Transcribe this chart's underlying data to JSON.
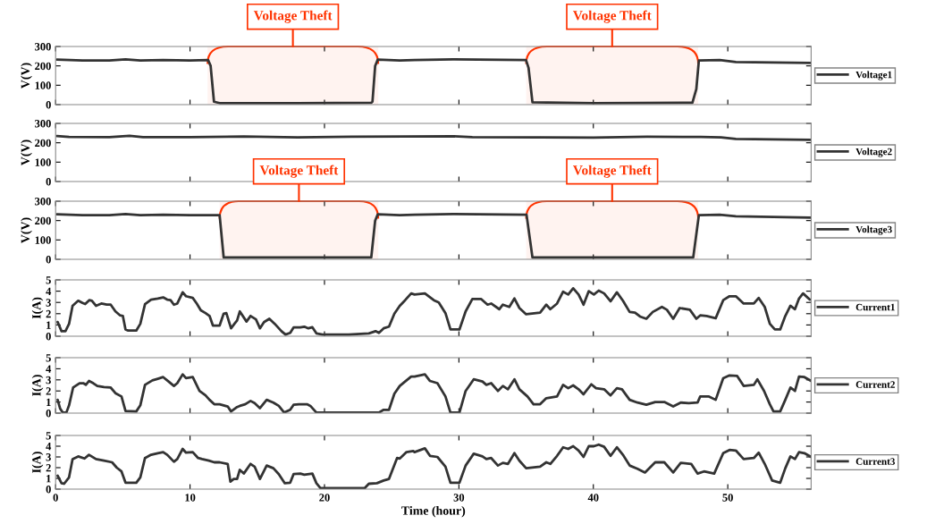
{
  "chart_data": [
    {
      "type": "line",
      "ylabel": "V(V)",
      "xlim": [
        0,
        56.2
      ],
      "xticks": [
        0,
        10,
        20,
        30,
        40,
        50
      ],
      "ylim": [
        0,
        300
      ],
      "yticks": [
        0,
        100,
        200,
        300
      ],
      "tick_labels": "y",
      "legend": "right",
      "grid": false,
      "x": [
        0.1,
        2,
        4,
        5.2,
        6.3,
        8,
        10,
        11.34,
        11.53,
        11.78,
        12.2,
        18,
        23.48,
        23.57,
        23.77,
        23.96,
        25.6,
        26.7,
        29.56,
        34.99,
        35.18,
        35.47,
        40.04,
        47.37,
        47.66,
        47.85,
        49.4,
        50.6,
        56.2
      ],
      "series": [
        {
          "name": "Voltage1",
          "color": "#333333",
          "values": [
            232,
            228,
            228,
            234,
            228,
            230,
            228,
            230,
            200,
            15,
            8,
            8,
            10,
            15,
            200,
            232,
            228,
            230,
            234,
            230,
            190,
            12,
            8,
            10,
            80,
            228,
            230,
            220,
            215
          ]
        }
      ],
      "bands": [
        {
          "axis": "x",
          "from": 11.3,
          "to": 24.0,
          "label": "Voltage Theft",
          "color": "#ff3300"
        },
        {
          "axis": "x",
          "from": 35.0,
          "to": 47.8,
          "label": "Voltage Theft",
          "color": "#ff3300"
        }
      ]
    },
    {
      "type": "line",
      "ylabel": "V(V)",
      "xlim": [
        0,
        56.2
      ],
      "xticks": [
        0,
        10,
        20,
        30,
        40,
        50
      ],
      "ylim": [
        0,
        300
      ],
      "yticks": [
        0,
        100,
        200,
        300
      ],
      "tick_labels": "y",
      "legend": "right",
      "grid": false,
      "x": [
        0.1,
        1,
        4,
        5.5,
        6.5,
        10,
        14,
        18,
        22,
        26,
        29.5,
        31,
        36,
        40,
        44,
        48,
        49.5,
        50.6,
        56.2
      ],
      "series": [
        {
          "name": "Voltage2",
          "color": "#333333",
          "values": [
            235,
            230,
            229,
            236,
            229,
            229,
            232,
            228,
            231,
            232,
            234,
            229,
            228,
            227,
            231,
            230,
            228,
            220,
            215
          ]
        }
      ]
    },
    {
      "type": "line",
      "ylabel": "V(V)",
      "xlim": [
        0,
        56.2
      ],
      "xticks": [
        0,
        10,
        20,
        30,
        40,
        50
      ],
      "ylim": [
        0,
        300
      ],
      "yticks": [
        0,
        100,
        200,
        300
      ],
      "tick_labels": "y",
      "legend": "right",
      "grid": false,
      "x": [
        0.1,
        2,
        4,
        5.2,
        6.3,
        8,
        10,
        12.2,
        12.5,
        18,
        23.48,
        23.77,
        23.96,
        25.6,
        26.7,
        29.56,
        35.03,
        35.47,
        40.04,
        47.43,
        47.85,
        49.4,
        50.6,
        56.2
      ],
      "series": [
        {
          "name": "Voltage3",
          "color": "#333333",
          "values": [
            232,
            228,
            228,
            234,
            228,
            230,
            228,
            228,
            10,
            10,
            10,
            200,
            232,
            228,
            230,
            234,
            230,
            10,
            10,
            10,
            228,
            230,
            222,
            215
          ]
        }
      ],
      "bands": [
        {
          "axis": "x",
          "from": 12.2,
          "to": 24.0,
          "label": "Voltage Theft",
          "color": "#ff3300"
        },
        {
          "axis": "x",
          "from": 35.0,
          "to": 47.8,
          "label": "Voltage Theft",
          "color": "#ff3300"
        }
      ]
    },
    {
      "type": "line",
      "ylabel": "I(A)",
      "xlim": [
        0,
        56.2
      ],
      "xticks": [
        0,
        10,
        20,
        30,
        40,
        50
      ],
      "ylim": [
        0,
        5
      ],
      "yticks": [
        0,
        1,
        2,
        3,
        4,
        5
      ],
      "tick_labels": "y",
      "legend": "right",
      "grid": false,
      "x": [
        0.15,
        0.44,
        0.73,
        1.0,
        1.26,
        1.68,
        2.0,
        2.2,
        2.5,
        2.7,
        3.0,
        3.4,
        3.8,
        4.1,
        4.45,
        4.8,
        5.0,
        5.2,
        5.4,
        6.0,
        6.3,
        6.65,
        7.1,
        7.6,
        8.0,
        8.3,
        8.55,
        8.8,
        9.05,
        9.45,
        9.7,
        10.2,
        10.5,
        10.8,
        11.15,
        11.45,
        11.7,
        12.2,
        12.5,
        12.7,
        13.05,
        13.3,
        13.5,
        13.7,
        14.2,
        14.5,
        14.9,
        15.2,
        15.5,
        15.9,
        16.3,
        16.8,
        17.1,
        17.45,
        17.7,
        18.2,
        18.5,
        18.8,
        19.1,
        19.4,
        19.85,
        21.8,
        23.3,
        23.8,
        24.05,
        24.4,
        24.8,
        25.2,
        25.6,
        26.0,
        26.45,
        26.7,
        27.47,
        28.13,
        28.5,
        29.0,
        29.37,
        30.04,
        30.5,
        31.0,
        31.66,
        32.13,
        32.4,
        33.0,
        33.27,
        33.75,
        34.13,
        34.5,
        35.0,
        36.04,
        36.5,
        36.8,
        37.3,
        37.75,
        38.13,
        38.5,
        38.9,
        39.27,
        39.66,
        40.04,
        40.4,
        40.8,
        41.28,
        41.75,
        42.2,
        42.7,
        43.1,
        43.47,
        43.94,
        44.42,
        45.1,
        45.47,
        45.94,
        46.42,
        47.18,
        47.66,
        47.95,
        48.42,
        49.1,
        49.66,
        50.13,
        50.6,
        51.18,
        51.94,
        52.3,
        52.75,
        53.13,
        53.5,
        53.9,
        54.28,
        54.66,
        55.0,
        55.3,
        55.6,
        56.1
      ],
      "series": [
        {
          "name": "Current1",
          "color": "#333333",
          "values": [
            1.26,
            0.45,
            0.45,
            1.1,
            2.7,
            3.15,
            2.95,
            2.85,
            3.2,
            3.15,
            2.7,
            2.9,
            2.8,
            2.8,
            2.2,
            1.85,
            1.8,
            0.6,
            0.5,
            0.5,
            1.1,
            2.85,
            3.25,
            3.35,
            3.45,
            3.25,
            3.2,
            2.8,
            2.9,
            3.9,
            3.55,
            3.4,
            2.9,
            2.3,
            2.05,
            1.8,
            0.95,
            0.95,
            2.0,
            2.05,
            0.7,
            1.1,
            1.4,
            2.2,
            1.3,
            1.8,
            1.5,
            0.7,
            1.25,
            1.55,
            1.1,
            0.45,
            0.15,
            0.3,
            0.78,
            0.78,
            0.85,
            0.7,
            0.8,
            0.25,
            0.15,
            0.15,
            0.25,
            0.45,
            0.3,
            0.7,
            0.85,
            2.0,
            2.7,
            3.2,
            3.8,
            3.7,
            3.8,
            3.2,
            3.0,
            2.05,
            0.6,
            0.6,
            2.2,
            3.3,
            3.3,
            2.8,
            2.9,
            2.4,
            2.8,
            2.6,
            3.35,
            2.5,
            1.95,
            2.1,
            2.8,
            2.4,
            2.9,
            3.95,
            3.7,
            4.25,
            3.7,
            2.8,
            4.0,
            3.7,
            4.05,
            3.8,
            3.1,
            3.9,
            3.15,
            2.15,
            2.1,
            1.75,
            1.55,
            2.15,
            2.6,
            2.35,
            1.55,
            2.5,
            2.35,
            1.55,
            1.85,
            1.8,
            1.6,
            3.2,
            3.55,
            3.55,
            2.9,
            2.9,
            3.4,
            2.6,
            1.1,
            0.6,
            0.6,
            1.8,
            2.7,
            2.4,
            3.35,
            3.8,
            3.25
          ]
        }
      ]
    },
    {
      "type": "line",
      "ylabel": "I(A)",
      "xlim": [
        0,
        56.2
      ],
      "xticks": [
        0,
        10,
        20,
        30,
        40,
        50
      ],
      "ylim": [
        0,
        5
      ],
      "yticks": [
        0,
        1,
        2,
        3,
        4,
        5
      ],
      "tick_labels": "y",
      "legend": "right",
      "grid": false,
      "x": [
        0.15,
        0.34,
        0.53,
        0.8,
        1.0,
        1.3,
        1.78,
        2.06,
        2.25,
        2.48,
        2.8,
        3.1,
        3.6,
        4.1,
        4.45,
        4.9,
        5.2,
        6.0,
        6.3,
        6.65,
        7.2,
        7.6,
        8.0,
        8.4,
        8.8,
        9.05,
        9.45,
        9.7,
        10.2,
        10.7,
        11.15,
        11.45,
        11.8,
        12.2,
        12.8,
        13.05,
        13.5,
        13.7,
        14.1,
        14.5,
        14.8,
        15.2,
        15.7,
        16.2,
        16.6,
        17.0,
        17.45,
        17.7,
        18.1,
        18.7,
        18.95,
        19.4,
        21.8,
        24.05,
        24.4,
        24.8,
        25.2,
        25.6,
        26.0,
        26.45,
        26.7,
        27.47,
        27.85,
        28.4,
        29.0,
        29.37,
        30.04,
        30.5,
        31.1,
        31.75,
        32.04,
        32.4,
        32.9,
        33.27,
        33.65,
        34.13,
        34.5,
        35.1,
        35.55,
        36.04,
        36.5,
        37.3,
        37.75,
        38.13,
        38.5,
        38.9,
        39.27,
        39.85,
        40.2,
        40.8,
        41.28,
        41.75,
        42.13,
        42.7,
        43.28,
        43.94,
        44.6,
        45.28,
        45.94,
        46.5,
        47.1,
        47.75,
        47.95,
        48.6,
        49.1,
        49.66,
        50.13,
        50.7,
        51.18,
        51.94,
        52.2,
        52.7,
        53.13,
        53.4,
        53.9,
        54.28,
        54.66,
        55.0,
        55.3,
        55.7,
        56.2
      ],
      "series": [
        {
          "name": "Current2",
          "color": "#333333",
          "values": [
            1.2,
            0.4,
            0.05,
            0.05,
            0.7,
            2.3,
            2.7,
            2.7,
            2.55,
            2.9,
            2.7,
            2.45,
            2.35,
            2.3,
            1.8,
            1.5,
            0.2,
            0.15,
            0.7,
            2.55,
            2.95,
            3.1,
            3.25,
            2.85,
            2.45,
            2.7,
            3.5,
            3.15,
            3.25,
            2.0,
            1.6,
            1.2,
            0.8,
            0.8,
            0.6,
            0.15,
            0.55,
            0.65,
            0.8,
            1.1,
            0.9,
            0.45,
            1.2,
            0.95,
            0.65,
            0.05,
            0.3,
            0.75,
            0.8,
            0.8,
            0.65,
            0.05,
            0.05,
            0.05,
            0.3,
            0.3,
            1.75,
            2.45,
            2.85,
            3.3,
            3.3,
            3.5,
            2.9,
            2.7,
            1.5,
            0.05,
            0.05,
            2.0,
            3.05,
            2.85,
            2.55,
            2.7,
            2.0,
            2.45,
            2.15,
            3.05,
            2.15,
            1.5,
            0.8,
            0.8,
            1.35,
            1.5,
            2.55,
            2.25,
            2.5,
            2.15,
            1.7,
            2.6,
            2.25,
            2.15,
            1.6,
            2.25,
            2.15,
            1.2,
            0.95,
            0.75,
            1.0,
            1.0,
            0.6,
            0.95,
            0.9,
            0.95,
            1.5,
            1.5,
            1.2,
            3.15,
            3.4,
            3.35,
            2.45,
            2.55,
            3.05,
            2.0,
            0.8,
            0.15,
            0.15,
            1.2,
            2.3,
            2.0,
            3.3,
            3.25,
            2.9
          ]
        }
      ]
    },
    {
      "type": "line",
      "ylabel": "I(A)",
      "xlabel": "Time (hour)",
      "xlim": [
        0,
        56.2
      ],
      "xticks": [
        0,
        10,
        20,
        30,
        40,
        50
      ],
      "ylim": [
        0,
        5
      ],
      "yticks": [
        0,
        1,
        2,
        3,
        4,
        5
      ],
      "legend": "right",
      "grid": false,
      "x": [
        0.15,
        0.44,
        0.63,
        1.0,
        1.26,
        1.68,
        2.15,
        2.48,
        3.0,
        3.6,
        4.2,
        4.55,
        4.9,
        5.2,
        6.0,
        6.3,
        6.65,
        7.1,
        7.6,
        8.0,
        8.3,
        8.8,
        9.05,
        9.45,
        9.7,
        10.2,
        10.6,
        10.9,
        11.4,
        11.8,
        12.2,
        12.8,
        13.0,
        13.25,
        13.5,
        13.7,
        14.0,
        14.5,
        14.8,
        15.2,
        15.7,
        16.2,
        16.6,
        17.05,
        17.45,
        17.7,
        18.2,
        18.5,
        19.1,
        19.4,
        19.7,
        21.8,
        23.0,
        23.3,
        23.9,
        24.4,
        24.8,
        25.4,
        25.6,
        26.1,
        26.6,
        26.7,
        27.47,
        27.85,
        28.4,
        29.0,
        29.37,
        30.04,
        30.5,
        31.1,
        31.75,
        32.04,
        32.4,
        32.9,
        33.27,
        33.65,
        34.13,
        34.5,
        35.0,
        36.04,
        36.5,
        36.8,
        37.3,
        37.75,
        38.13,
        38.5,
        38.9,
        39.27,
        39.66,
        40.04,
        40.4,
        40.8,
        41.28,
        41.75,
        42.2,
        42.7,
        43.28,
        43.84,
        44.6,
        45.28,
        45.94,
        46.5,
        47.28,
        47.75,
        48.23,
        48.99,
        49.66,
        50.13,
        50.6,
        51.18,
        51.94,
        52.3,
        52.75,
        53.3,
        53.9,
        54.28,
        54.66,
        55.0,
        55.3,
        55.7,
        56.2
      ],
      "series": [
        {
          "name": "Current3",
          "color": "#333333",
          "values": [
            1.25,
            0.55,
            0.5,
            1.1,
            2.8,
            3.05,
            2.85,
            3.2,
            2.8,
            2.65,
            2.5,
            2.0,
            1.65,
            0.6,
            0.6,
            1.1,
            2.9,
            3.2,
            3.35,
            3.45,
            3.2,
            2.55,
            2.8,
            3.75,
            3.4,
            3.45,
            2.9,
            2.8,
            2.65,
            2.5,
            2.5,
            2.35,
            0.7,
            0.95,
            0.95,
            1.8,
            1.45,
            2.35,
            2.1,
            0.95,
            2.2,
            1.95,
            1.4,
            0.55,
            0.6,
            1.4,
            1.45,
            1.35,
            1.45,
            0.55,
            0.1,
            0.1,
            0.1,
            0.5,
            0.55,
            0.8,
            0.95,
            2.9,
            2.85,
            3.45,
            3.55,
            3.45,
            3.8,
            3.1,
            3.0,
            2.1,
            0.6,
            0.6,
            2.2,
            3.3,
            3.05,
            2.8,
            2.9,
            2.2,
            2.45,
            2.35,
            3.35,
            2.65,
            1.95,
            2.1,
            2.5,
            2.35,
            3.1,
            3.9,
            3.75,
            4.0,
            3.6,
            3.0,
            4.0,
            4.0,
            4.15,
            3.95,
            3.1,
            3.9,
            3.2,
            2.2,
            1.9,
            1.55,
            2.5,
            2.5,
            1.55,
            2.45,
            2.35,
            1.45,
            1.65,
            1.45,
            3.35,
            3.65,
            3.6,
            2.8,
            2.9,
            3.4,
            2.35,
            0.8,
            0.6,
            1.95,
            3.05,
            2.8,
            3.45,
            3.35,
            3.0
          ]
        }
      ]
    }
  ]
}
